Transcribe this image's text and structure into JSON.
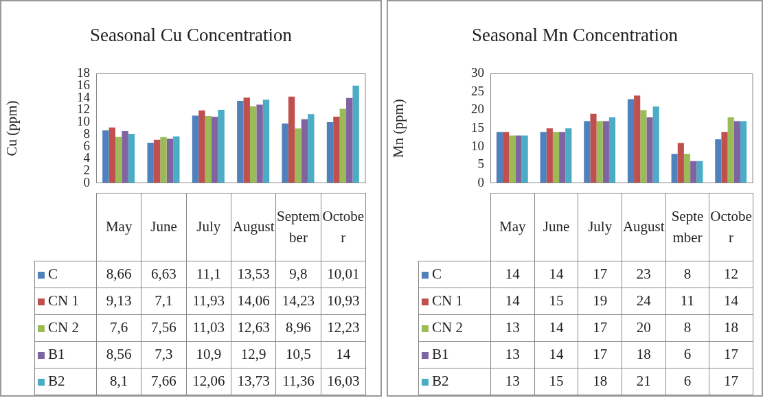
{
  "chart_data": [
    {
      "type": "bar",
      "title": "Seasonal Cu Concentration",
      "ylabel": "Cu (ppm)",
      "categories": [
        "May",
        "June",
        "July",
        "August",
        "September",
        "October"
      ],
      "ylim": [
        0,
        18
      ],
      "yticks": [
        0,
        2,
        4,
        6,
        8,
        10,
        12,
        14,
        16,
        18
      ],
      "grid": false,
      "legend": "bottom",
      "series": [
        {
          "name": "C",
          "color": "#4f81bd",
          "values": [
            8.66,
            6.63,
            11.1,
            13.53,
            9.8,
            10.01
          ],
          "value_labels": [
            "8,66",
            "6,63",
            "11,1",
            "13,53",
            "9,8",
            "10,01"
          ]
        },
        {
          "name": "CN 1",
          "color": "#c0504d",
          "values": [
            9.13,
            7.1,
            11.93,
            14.06,
            14.23,
            10.93
          ],
          "value_labels": [
            "9,13",
            "7,1",
            "11,93",
            "14,06",
            "14,23",
            "10,93"
          ]
        },
        {
          "name": "CN 2",
          "color": "#9bbb59",
          "values": [
            7.6,
            7.56,
            11.03,
            12.63,
            8.96,
            12.23
          ],
          "value_labels": [
            "7,6",
            "7,56",
            "11,03",
            "12,63",
            "8,96",
            "12,23"
          ]
        },
        {
          "name": "B1",
          "color": "#8064a2",
          "values": [
            8.56,
            7.3,
            10.9,
            12.9,
            10.5,
            14
          ],
          "value_labels": [
            "8,56",
            "7,3",
            "10,9",
            "12,9",
            "10,5",
            "14"
          ]
        },
        {
          "name": "B2",
          "color": "#4bacc6",
          "values": [
            8.1,
            7.66,
            12.06,
            13.73,
            11.36,
            16.03
          ],
          "value_labels": [
            "8,1",
            "7,66",
            "12,06",
            "13,73",
            "11,36",
            "16,03"
          ]
        }
      ]
    },
    {
      "type": "bar",
      "title": "Seasonal Mn Concentration",
      "ylabel": "Mn (ppm)",
      "data_labels": true,
      "categories": [
        "May",
        "June",
        "July",
        "August",
        "September",
        "October"
      ],
      "ylim": [
        0,
        30
      ],
      "yticks": [
        0,
        5,
        10,
        15,
        20,
        25,
        30
      ],
      "grid": false,
      "legend": "bottom",
      "series": [
        {
          "name": "C",
          "color": "#4f81bd",
          "values": [
            14,
            14,
            17,
            23,
            8,
            12
          ]
        },
        {
          "name": "CN 1",
          "color": "#c0504d",
          "values": [
            14,
            15,
            19,
            24,
            11,
            14
          ]
        },
        {
          "name": "CN 2",
          "color": "#9bbb59",
          "values": [
            13,
            14,
            17,
            20,
            8,
            18
          ]
        },
        {
          "name": "B1",
          "color": "#8064a2",
          "values": [
            13,
            14,
            17,
            18,
            6,
            17
          ]
        },
        {
          "name": "B2",
          "color": "#4bacc6",
          "values": [
            13,
            15,
            18,
            21,
            6,
            17
          ]
        }
      ]
    }
  ]
}
